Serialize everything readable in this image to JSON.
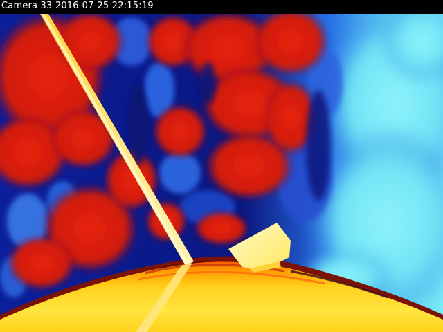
{
  "overlay": {
    "camera_label": "Camera 33",
    "date": "2016-07-25",
    "time": "22:15:19"
  },
  "scene": {
    "palette": {
      "deep_blue": "#0a1a8c",
      "blue": "#1f4fd8",
      "cyan": "#6fe7f7",
      "red": "#e0200f",
      "orange": "#ff8a00",
      "yellow": "#ffe23a",
      "white_hot": "#fffbd0"
    }
  }
}
